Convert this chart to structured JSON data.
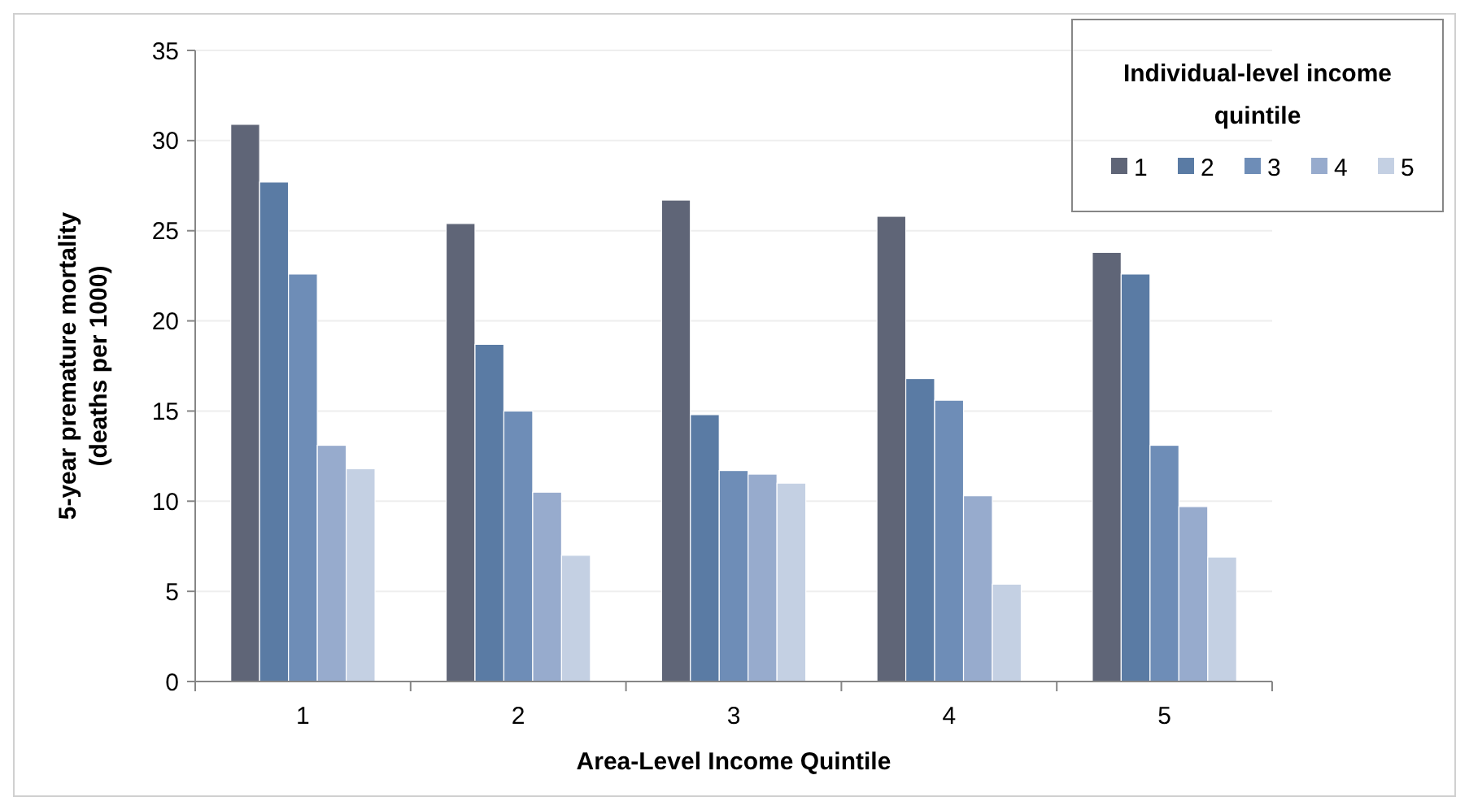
{
  "chart_data": {
    "type": "bar",
    "xlabel": "Area-Level Income Quintile",
    "ylabel": "5-year premature mortality (deaths per 1000)",
    "legend_title": "Individual-level income quintile",
    "categories": [
      "1",
      "2",
      "3",
      "4",
      "5"
    ],
    "series": [
      {
        "name": "1",
        "color": "#5f6577",
        "values": [
          30.9,
          25.4,
          26.7,
          25.8,
          23.8
        ]
      },
      {
        "name": "2",
        "color": "#5a7ba4",
        "values": [
          27.7,
          18.7,
          14.8,
          16.8,
          22.6
        ]
      },
      {
        "name": "3",
        "color": "#6e8db7",
        "values": [
          22.6,
          15.0,
          11.7,
          15.6,
          13.1
        ]
      },
      {
        "name": "4",
        "color": "#97abcd",
        "values": [
          13.1,
          10.5,
          11.5,
          10.3,
          9.7
        ]
      },
      {
        "name": "5",
        "color": "#c4d0e3",
        "values": [
          11.8,
          7.0,
          11.0,
          5.4,
          6.9
        ]
      }
    ],
    "ylim": [
      0,
      35
    ],
    "yticks": [
      0,
      5,
      10,
      15,
      20,
      25,
      30,
      35
    ],
    "grid": "y",
    "legend": "top right"
  }
}
